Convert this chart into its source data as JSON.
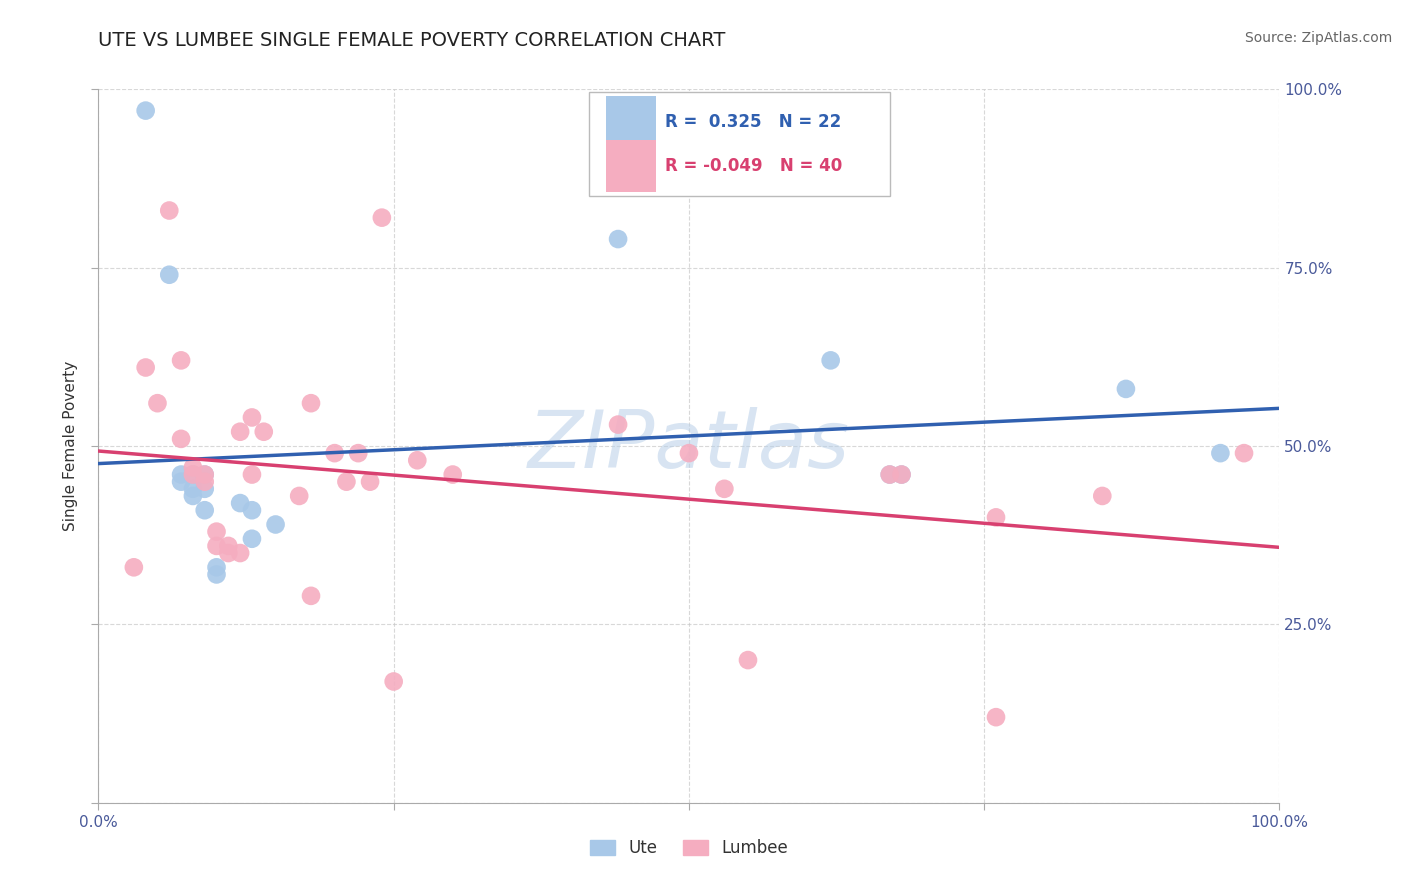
{
  "title": "UTE VS LUMBEE SINGLE FEMALE POVERTY CORRELATION CHART",
  "source": "Source: ZipAtlas.com",
  "ylabel": "Single Female Poverty",
  "watermark": "ZIPatlas",
  "xlim": [
    0.0,
    1.0
  ],
  "ylim": [
    0.0,
    1.0
  ],
  "x_ticks": [
    0.0,
    0.25,
    0.5,
    0.75,
    1.0
  ],
  "y_ticks": [
    0.0,
    0.25,
    0.5,
    0.75,
    1.0
  ],
  "x_tick_labels": [
    "0.0%",
    "",
    "",
    "",
    "100.0%"
  ],
  "y_tick_labels_right": [
    "",
    "25.0%",
    "50.0%",
    "75.0%",
    "100.0%"
  ],
  "ute_R": 0.325,
  "ute_N": 22,
  "lumbee_R": -0.049,
  "lumbee_N": 40,
  "ute_color": "#a8c8e8",
  "lumbee_color": "#f5adc0",
  "ute_line_color": "#3060b0",
  "lumbee_line_color": "#d84070",
  "ute_points_x": [
    0.04,
    0.06,
    0.07,
    0.07,
    0.08,
    0.08,
    0.08,
    0.09,
    0.09,
    0.09,
    0.1,
    0.1,
    0.12,
    0.13,
    0.13,
    0.15,
    0.44,
    0.62,
    0.67,
    0.68,
    0.87,
    0.95
  ],
  "ute_points_y": [
    0.97,
    0.74,
    0.46,
    0.45,
    0.46,
    0.44,
    0.43,
    0.46,
    0.44,
    0.41,
    0.33,
    0.32,
    0.42,
    0.41,
    0.37,
    0.39,
    0.79,
    0.62,
    0.46,
    0.46,
    0.58,
    0.49
  ],
  "lumbee_points_x": [
    0.03,
    0.04,
    0.05,
    0.06,
    0.07,
    0.07,
    0.08,
    0.08,
    0.09,
    0.09,
    0.1,
    0.1,
    0.11,
    0.11,
    0.12,
    0.12,
    0.13,
    0.13,
    0.14,
    0.17,
    0.18,
    0.18,
    0.2,
    0.21,
    0.22,
    0.23,
    0.24,
    0.25,
    0.27,
    0.3,
    0.44,
    0.5,
    0.53,
    0.55,
    0.67,
    0.68,
    0.76,
    0.76,
    0.85,
    0.97
  ],
  "lumbee_points_y": [
    0.33,
    0.61,
    0.56,
    0.83,
    0.51,
    0.62,
    0.47,
    0.46,
    0.46,
    0.45,
    0.38,
    0.36,
    0.36,
    0.35,
    0.35,
    0.52,
    0.54,
    0.46,
    0.52,
    0.43,
    0.56,
    0.29,
    0.49,
    0.45,
    0.49,
    0.45,
    0.82,
    0.17,
    0.48,
    0.46,
    0.53,
    0.49,
    0.44,
    0.2,
    0.46,
    0.46,
    0.4,
    0.12,
    0.43,
    0.49
  ],
  "background_color": "#ffffff",
  "grid_color": "#c8c8c8",
  "title_color": "#222222"
}
